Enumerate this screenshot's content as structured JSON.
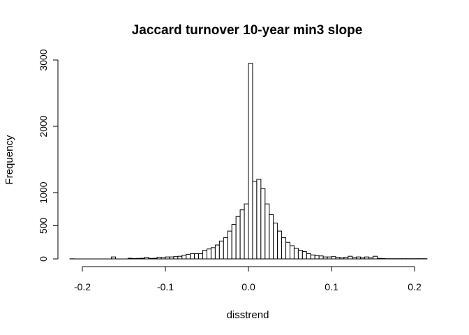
{
  "chart_data": {
    "type": "bar",
    "subtype": "histogram",
    "title": "Jaccard turnover 10-year min3 slope",
    "xlabel": "disstrend",
    "ylabel": "Frequency",
    "xlim": [
      -0.215,
      0.215
    ],
    "ylim": [
      0,
      3000
    ],
    "xticks": [
      -0.2,
      -0.1,
      0.0,
      0.1,
      0.2
    ],
    "xtick_labels": [
      "-0.2",
      "-0.1",
      "0.0",
      "0.1",
      "0.2"
    ],
    "yticks": [
      0,
      500,
      1000,
      2000,
      3000
    ],
    "ytick_labels": [
      "0",
      "500",
      "1000",
      "2000",
      "3000"
    ],
    "bin_width": 0.005,
    "bin_start": -0.215,
    "bin_end": 0.215,
    "values": [
      2,
      0,
      0,
      0,
      0,
      0,
      0,
      0,
      0,
      0,
      30,
      0,
      0,
      0,
      10,
      5,
      8,
      10,
      25,
      8,
      10,
      25,
      20,
      30,
      30,
      35,
      40,
      55,
      70,
      80,
      80,
      80,
      130,
      150,
      170,
      210,
      270,
      320,
      420,
      520,
      640,
      740,
      830,
      2950,
      1170,
      1200,
      1060,
      830,
      670,
      540,
      420,
      320,
      250,
      200,
      160,
      130,
      110,
      80,
      60,
      50,
      45,
      30,
      30,
      35,
      25,
      15,
      25,
      40,
      20,
      30,
      15,
      30,
      15,
      40,
      8,
      5,
      3,
      3,
      3,
      3,
      3,
      3,
      3,
      3,
      3,
      3
    ]
  }
}
